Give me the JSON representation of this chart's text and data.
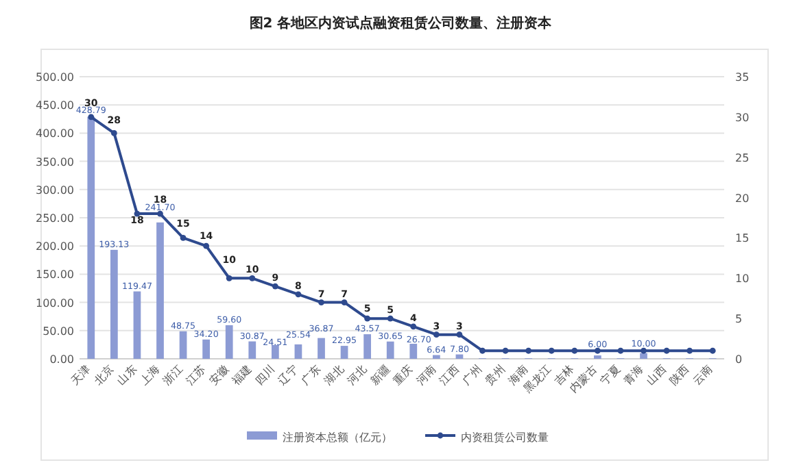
{
  "chart_data": {
    "type": "bar",
    "title": "图2 各地区内资试点融资租赁公司数量、注册资本",
    "categories": [
      "天津",
      "北京",
      "山东",
      "上海",
      "浙江",
      "江苏",
      "安徽",
      "福建",
      "四川",
      "辽宁",
      "广东",
      "湖北",
      "河北",
      "新疆",
      "重庆",
      "河南",
      "江西",
      "广州",
      "贵州",
      "海南",
      "黑龙江",
      "吉林",
      "内蒙古",
      "宁夏",
      "青海",
      "山西",
      "陕西",
      "云南"
    ],
    "series": [
      {
        "name": "注册资本总额（亿元）",
        "type": "bar",
        "color": "#8c9bd4",
        "values": [
          428.79,
          193.13,
          119.47,
          241.7,
          48.75,
          34.2,
          59.6,
          30.87,
          24.51,
          25.54,
          36.87,
          22.95,
          43.57,
          30.65,
          26.7,
          6.64,
          7.8,
          1,
          1,
          1,
          1,
          1,
          6.0,
          1,
          10.0,
          1,
          1,
          1
        ],
        "value_labels": [
          "428.79",
          "193.13",
          "119.47",
          "241.70",
          "48.75",
          "34.20",
          "59.60",
          "30.87",
          "24.51",
          "25.54",
          "36.87",
          "22.95",
          "43.57",
          "30.65",
          "26.70",
          "6.64",
          "7.80",
          null,
          null,
          null,
          null,
          null,
          "6.00",
          null,
          "10.00",
          null,
          null,
          null
        ]
      },
      {
        "name": "内资租赁公司数量",
        "type": "line",
        "axis": "y2",
        "color": "#2e4a8e",
        "marker": "circle",
        "values": [
          30,
          28,
          18,
          18,
          15,
          14,
          10,
          10,
          9,
          8,
          7,
          7,
          5,
          5,
          4,
          3,
          3,
          1,
          1,
          1,
          1,
          1,
          1,
          1,
          1,
          1,
          1,
          1
        ],
        "value_labels": [
          "30",
          "28",
          "18",
          "18",
          "15",
          "14",
          "10",
          "10",
          "9",
          "8",
          "7",
          "7",
          "5",
          "5",
          "4",
          "3",
          "3",
          null,
          null,
          null,
          null,
          null,
          null,
          null,
          null,
          null,
          null,
          null
        ]
      }
    ],
    "ylim": [
      0,
      500
    ],
    "yticks": [
      {
        "value": 0,
        "label": "0.00"
      },
      {
        "value": 50,
        "label": "50.00"
      },
      {
        "value": 100,
        "label": "100.00"
      },
      {
        "value": 150,
        "label": "150.00"
      },
      {
        "value": 200,
        "label": "200.00"
      },
      {
        "value": 250,
        "label": "250.00"
      },
      {
        "value": 300,
        "label": "300.00"
      },
      {
        "value": 350,
        "label": "350.00"
      },
      {
        "value": 400,
        "label": "400.00"
      },
      {
        "value": 450,
        "label": "450.00"
      },
      {
        "value": 500,
        "label": "500.00"
      }
    ],
    "y2lim": [
      0,
      35
    ],
    "y2ticks": [
      0,
      5,
      10,
      15,
      20,
      25,
      30,
      35
    ],
    "grid": "y",
    "legend": "bottom"
  }
}
